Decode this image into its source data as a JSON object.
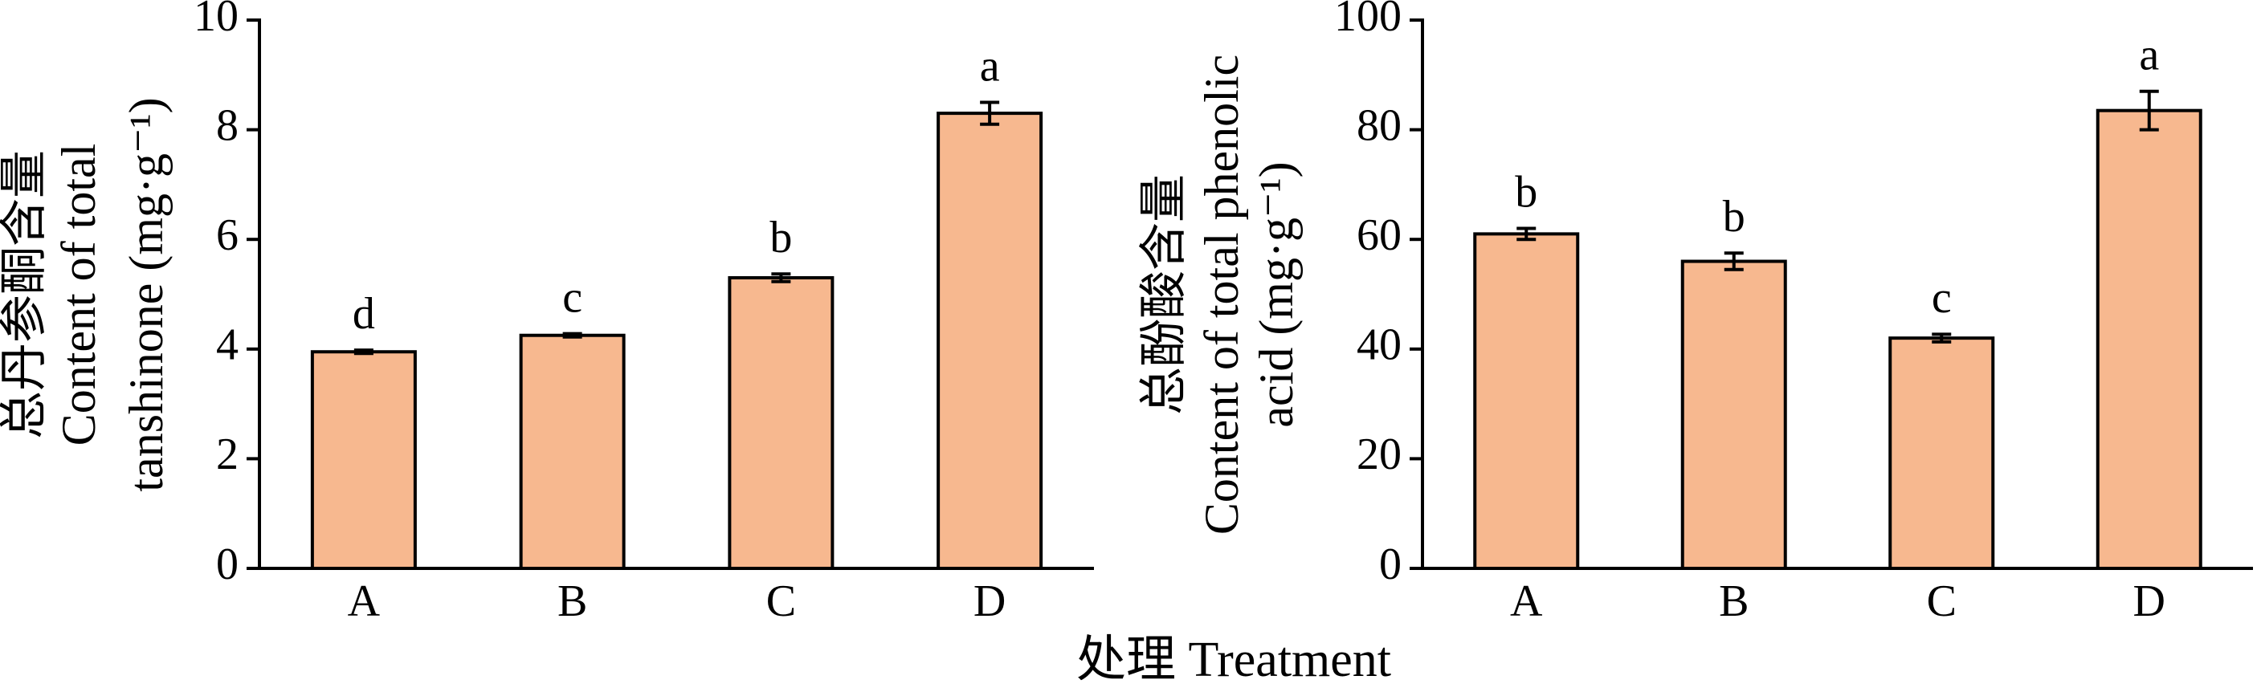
{
  "chart_data": [
    {
      "type": "bar",
      "ylabel": [
        "总丹参酮含量",
        "Content of total",
        "tanshinone (mg·g⁻¹)"
      ],
      "categories": [
        "A",
        "B",
        "C",
        "D"
      ],
      "values": [
        3.95,
        4.25,
        5.3,
        8.3
      ],
      "errors": [
        0.03,
        0.03,
        0.07,
        0.2
      ],
      "significance_letters": [
        "d",
        "c",
        "b",
        "a"
      ],
      "color": "#f7b88f",
      "ylim": [
        0,
        10
      ],
      "yticks": [
        0,
        2,
        4,
        6,
        8,
        10
      ]
    },
    {
      "type": "bar",
      "ylabel": [
        "总酚酸含量",
        "Content of total phenolic",
        "acid (mg·g⁻¹)"
      ],
      "categories": [
        "A",
        "B",
        "C",
        "D"
      ],
      "values": [
        61,
        56,
        42,
        83.5
      ],
      "errors": [
        1,
        1.5,
        0.7,
        3.5
      ],
      "significance_letters": [
        "b",
        "b",
        "c",
        "a"
      ],
      "color": "#f7b88f",
      "ylim": [
        0,
        100
      ],
      "yticks": [
        0,
        20,
        40,
        60,
        80,
        100
      ]
    }
  ],
  "shared_xlabel": "处理 Treatment"
}
